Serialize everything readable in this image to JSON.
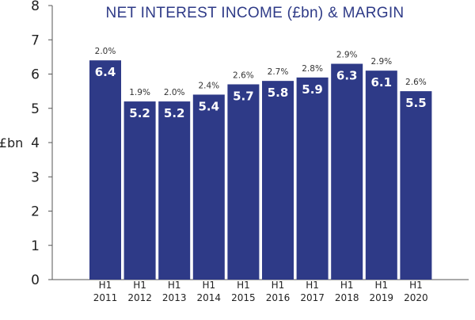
{
  "chart_data": {
    "type": "bar",
    "title": "NET INTEREST INCOME (£bn) & MARGIN",
    "ylabel": "£bn",
    "xlabel": "",
    "ylim": [
      0,
      8
    ],
    "yticks": [
      0,
      1,
      2,
      3,
      4,
      5,
      6,
      7,
      8
    ],
    "categories": [
      [
        "H1",
        "2011"
      ],
      [
        "H1",
        "2012"
      ],
      [
        "H1",
        "2013"
      ],
      [
        "H1",
        "2014"
      ],
      [
        "H1",
        "2015"
      ],
      [
        "H1",
        "2016"
      ],
      [
        "H1",
        "2017"
      ],
      [
        "H1",
        "2018"
      ],
      [
        "H1",
        "2019"
      ],
      [
        "H1",
        "2020"
      ]
    ],
    "series": [
      {
        "values": [
          6.4,
          5.2,
          5.2,
          5.4,
          5.7,
          5.8,
          5.9,
          6.3,
          6.1,
          5.5
        ],
        "value_labels": [
          "6.4",
          "5.2",
          "5.2",
          "5.4",
          "5.7",
          "5.8",
          "5.9",
          "6.3",
          "6.1",
          "5.5"
        ],
        "color": "#2e3a87"
      }
    ],
    "margins": [
      "2.0%",
      "1.9%",
      "2.0%",
      "2.4%",
      "2.6%",
      "2.7%",
      "2.8%",
      "2.9%",
      "2.9%",
      "2.6%"
    ],
    "grid": false,
    "legend": "none"
  }
}
